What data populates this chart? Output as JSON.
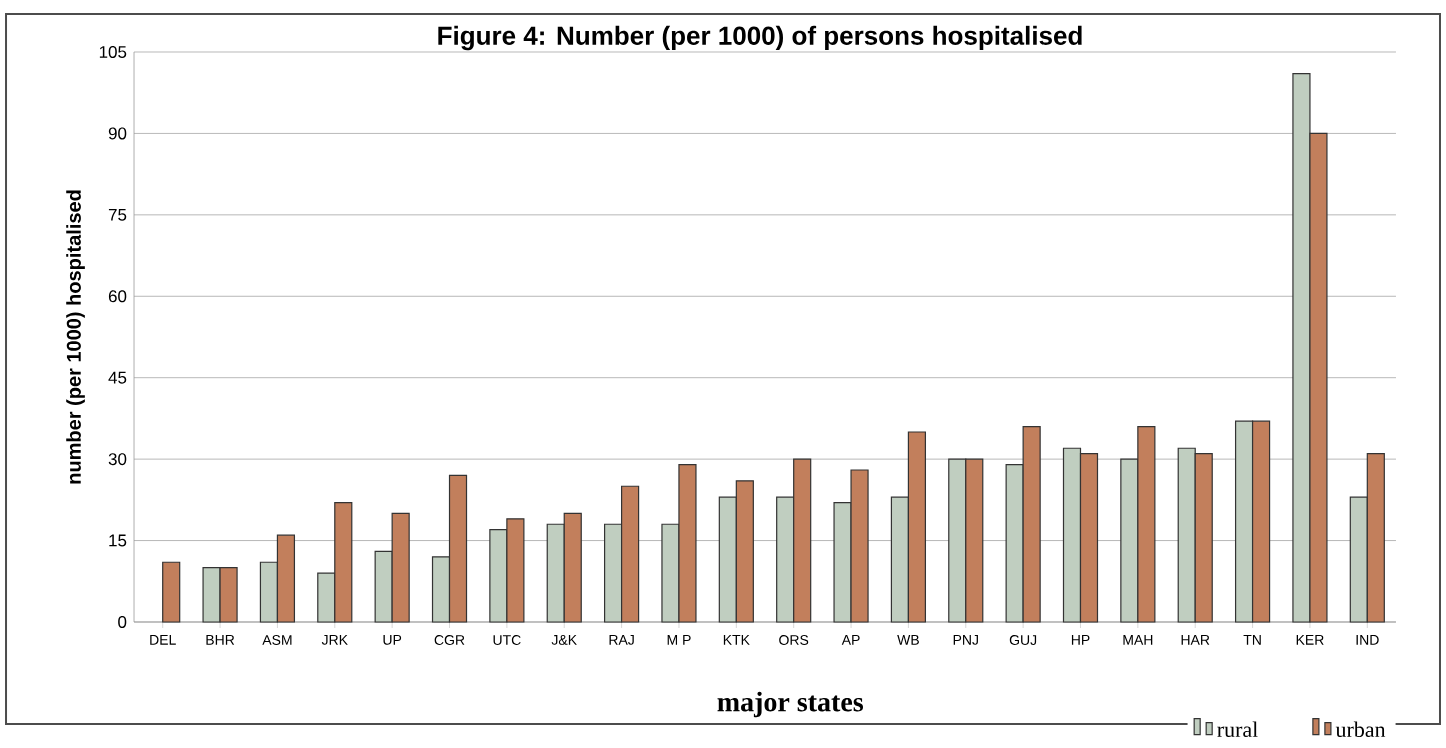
{
  "chart_data": {
    "type": "bar",
    "title": "Figure 4: Number (per 1000) of  persons hospitalised",
    "xlabel": "major states",
    "ylabel": "number (per 1000) hospitalised",
    "categories": [
      "DEL",
      "BHR",
      "ASM",
      "JRK",
      "UP",
      "CGR",
      "UTC",
      "J&K",
      "RAJ",
      "M P",
      "KTK",
      "ORS",
      "AP",
      "WB",
      "PNJ",
      "GUJ",
      "HP",
      "MAH",
      "HAR",
      "TN",
      "KER",
      "IND"
    ],
    "series": [
      {
        "name": "rural",
        "color": "#c0cec0",
        "values": [
          null,
          10,
          11,
          9,
          13,
          12,
          17,
          18,
          18,
          18,
          23,
          23,
          22,
          23,
          30,
          29,
          32,
          30,
          32,
          37,
          101,
          23
        ]
      },
      {
        "name": "urban",
        "color": "#c27f5c",
        "values": [
          11,
          10,
          16,
          22,
          20,
          27,
          19,
          20,
          25,
          29,
          26,
          30,
          28,
          35,
          30,
          36,
          31,
          36,
          31,
          37,
          90,
          31
        ]
      }
    ],
    "ylim": [
      0,
      105
    ],
    "yticks": [
      0,
      15,
      30,
      45,
      60,
      75,
      90,
      105
    ],
    "grid": "y",
    "legend": "bottom right"
  }
}
